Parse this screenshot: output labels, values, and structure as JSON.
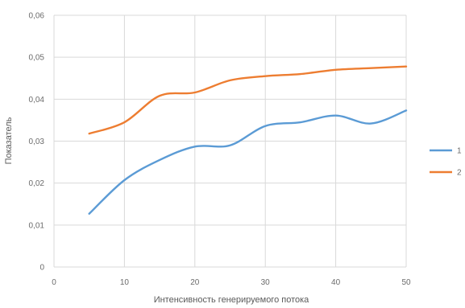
{
  "chart_data": {
    "type": "line",
    "xlabel": "Интенсивность генерируемого потока",
    "ylabel": "Показатель",
    "xlim": [
      0,
      50
    ],
    "ylim": [
      0,
      0.06
    ],
    "xticks": [
      {
        "value": 0,
        "label": "0"
      },
      {
        "value": 10,
        "label": "10"
      },
      {
        "value": 20,
        "label": "20"
      },
      {
        "value": 30,
        "label": "30"
      },
      {
        "value": 40,
        "label": "40"
      },
      {
        "value": 50,
        "label": "50"
      }
    ],
    "yticks": [
      {
        "value": 0,
        "label": "0"
      },
      {
        "value": 0.01,
        "label": "0,01"
      },
      {
        "value": 0.02,
        "label": "0,02"
      },
      {
        "value": 0.03,
        "label": "0,03"
      },
      {
        "value": 0.04,
        "label": "0,04"
      },
      {
        "value": 0.05,
        "label": "0,05"
      },
      {
        "value": 0.06,
        "label": "0,06"
      }
    ],
    "grid": true,
    "legend_position": "right",
    "series": [
      {
        "name": "1",
        "color": "#5b9bd5",
        "x": [
          5,
          10,
          15,
          20,
          25,
          30,
          35,
          40,
          45,
          50
        ],
        "y": [
          0.0127,
          0.0207,
          0.0255,
          0.0287,
          0.029,
          0.0336,
          0.0345,
          0.0361,
          0.0342,
          0.0373
        ]
      },
      {
        "name": "2",
        "color": "#ed7d31",
        "x": [
          5,
          10,
          15,
          20,
          25,
          30,
          35,
          40,
          45,
          50
        ],
        "y": [
          0.0318,
          0.0345,
          0.0408,
          0.0416,
          0.0445,
          0.0455,
          0.046,
          0.047,
          0.0474,
          0.0478
        ]
      }
    ]
  }
}
